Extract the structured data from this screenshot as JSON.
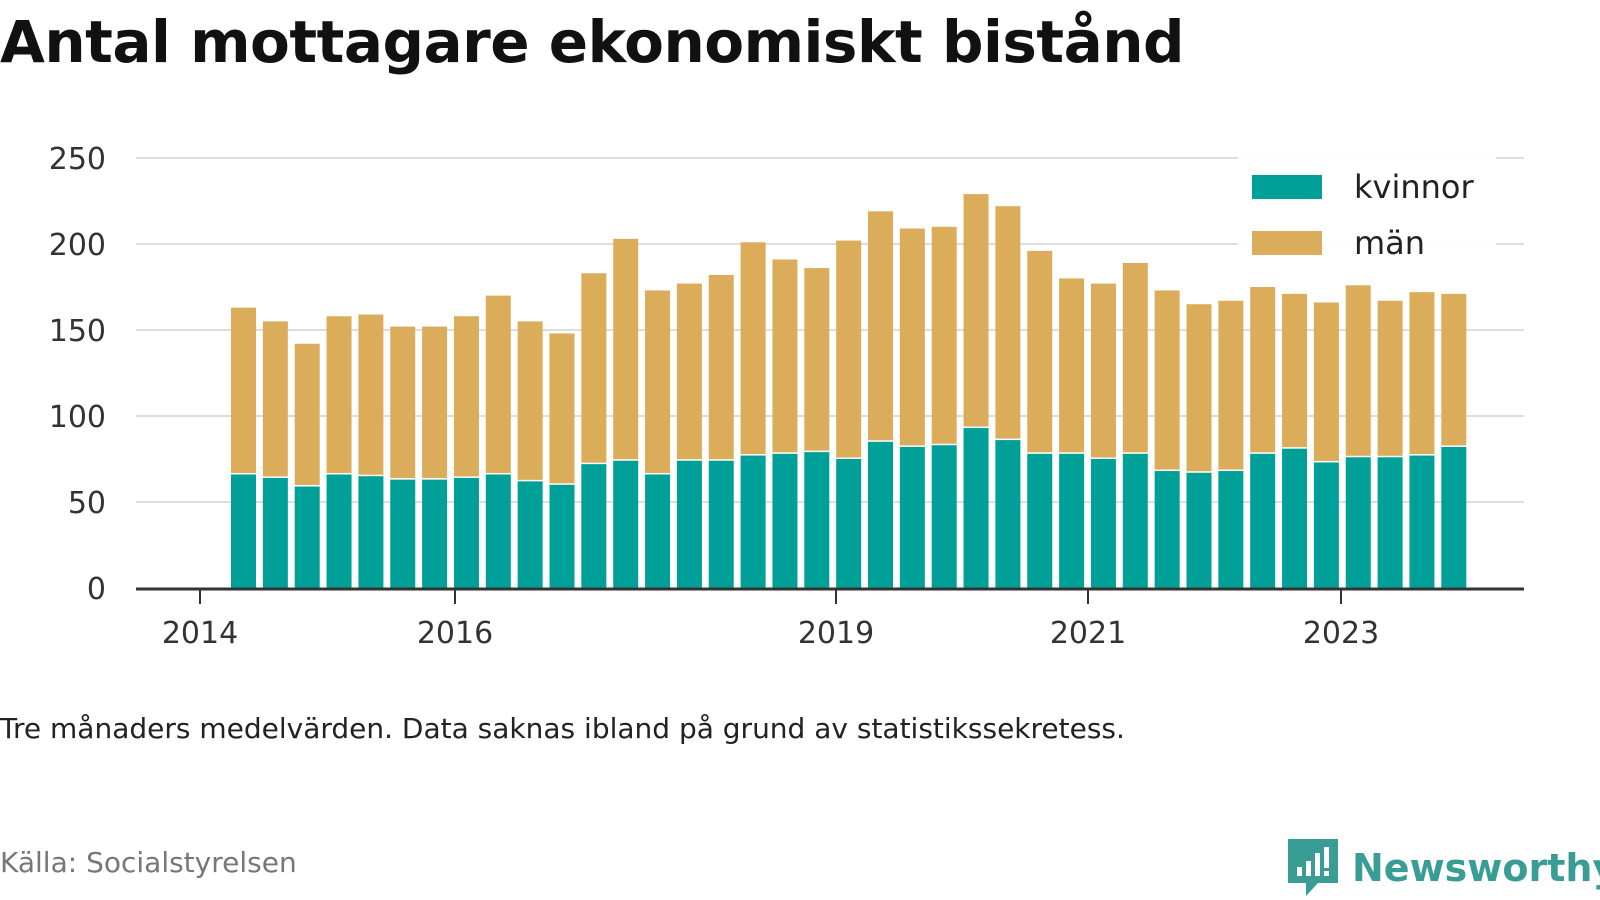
{
  "page": {
    "title": "Antal mottagare ekonomiskt bistånd",
    "note": "Tre månaders medelvärden. Data saknas ibland på grund av statistikssekretess.",
    "source": "Källa: Socialstyrelsen",
    "brand": "Newsworthy",
    "brand_icon": "newsworthy-logo-icon"
  },
  "colors": {
    "kvinnor": "#00a098",
    "man": "#dbad5b",
    "grid": "#dddddd",
    "axis": "#333333",
    "brand": "#3a9d95"
  },
  "chart_data": {
    "type": "bar",
    "stacked": true,
    "x_ticks": [
      "2014",
      "2016",
      "2019",
      "2021",
      "2023"
    ],
    "y_ticks": [
      0,
      50,
      100,
      150,
      200,
      250
    ],
    "ylim": [
      0,
      250
    ],
    "grid": true,
    "legend_position": "top-right",
    "series": [
      {
        "name": "kvinnor",
        "values": [
          66,
          64,
          59,
          66,
          65,
          63,
          63,
          64,
          66,
          62,
          60,
          72,
          74,
          66,
          74,
          74,
          77,
          78,
          79,
          75,
          85,
          82,
          83,
          93,
          86,
          78,
          78,
          75,
          78,
          68,
          67,
          68,
          78,
          81,
          73,
          76,
          76,
          77,
          82
        ]
      },
      {
        "name": "män",
        "values": [
          97,
          91,
          83,
          92,
          94,
          89,
          89,
          94,
          104,
          93,
          88,
          111,
          129,
          107,
          103,
          108,
          124,
          113,
          107,
          127,
          134,
          127,
          127,
          136,
          136,
          118,
          102,
          102,
          111,
          105,
          98,
          99,
          97,
          90,
          93,
          100,
          91,
          95,
          89
        ]
      }
    ]
  }
}
